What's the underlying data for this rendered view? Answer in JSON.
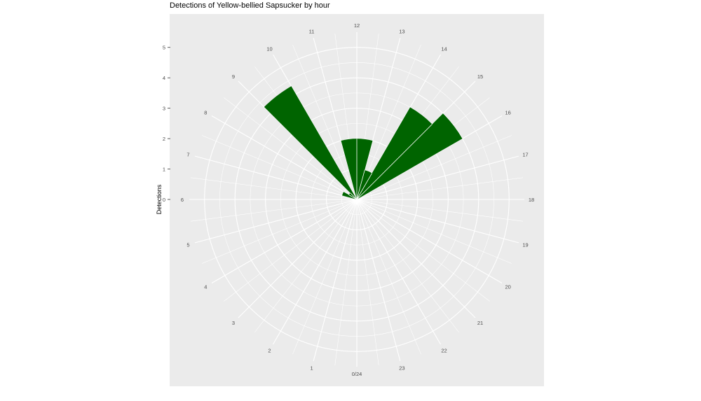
{
  "chart_data": {
    "type": "bar",
    "coord": "polar",
    "title": "Detections of Yellow-bellied Sapsucker by hour",
    "ylabel": "Detections",
    "xlabel": "",
    "x_tick_labels": [
      "0/24",
      "1",
      "2",
      "3",
      "4",
      "5",
      "6",
      "7",
      "8",
      "9",
      "10",
      "11",
      "12",
      "13",
      "14",
      "15",
      "16",
      "17",
      "18",
      "19",
      "20",
      "21",
      "22",
      "23"
    ],
    "y_tick_labels": [
      "0",
      "1",
      "2",
      "3",
      "4",
      "5"
    ],
    "ylim": [
      0,
      5.5
    ],
    "categories": [
      "6",
      "7",
      "8",
      "9",
      "10",
      "11",
      "12",
      "13",
      "14",
      "15",
      "16",
      "17",
      "18"
    ],
    "values": [
      0,
      0.5,
      0.3,
      4.3,
      0,
      2.0,
      2.0,
      1.0,
      3.5,
      4.0,
      0,
      0,
      0
    ],
    "bar_color": "#006400",
    "panel_color": "#ebebeb",
    "grid_color": "#ffffff",
    "grid": true
  }
}
